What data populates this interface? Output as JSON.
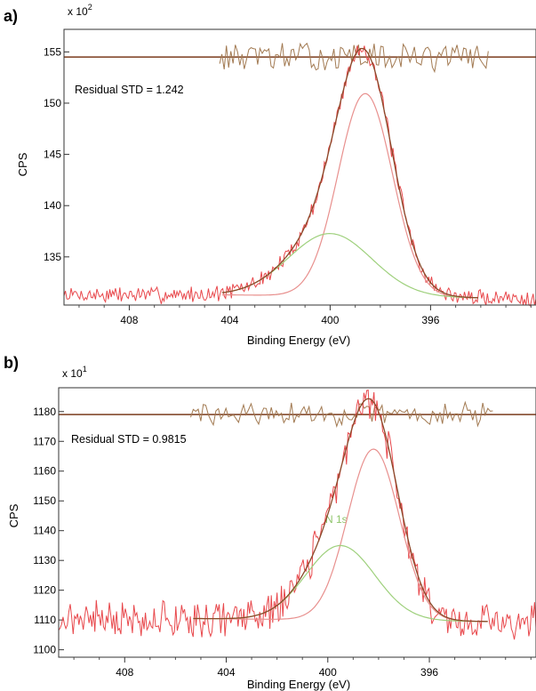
{
  "chart_data": [
    {
      "panel": "a)",
      "type": "line",
      "xlabel": "Binding Energy (eV)",
      "ylabel": "CPS",
      "multiplier": "x 10",
      "multiplier_exp": "2",
      "annotation": "Residual STD = 1.242",
      "peak_label": "",
      "x_reversed": true,
      "xlim": [
        410.6,
        391.8
      ],
      "ylim": [
        130.3,
        157.2
      ],
      "xticks": [
        408,
        404,
        400,
        396
      ],
      "yticks": [
        135,
        140,
        145,
        150,
        155
      ],
      "residual_baseline": 154.5,
      "residual_range": [
        404.4,
        393.7
      ],
      "residual_amp": 1.2,
      "background": {
        "left_x": 404.3,
        "left_y": 131.3,
        "right_x": 394.1,
        "right_y": 131.0
      },
      "components": [
        {
          "center": 398.6,
          "height": 19.8,
          "fwhm": 2.55,
          "color": "#e8908e"
        },
        {
          "center": 400.0,
          "height": 6.1,
          "fwhm": 3.9,
          "color": "#9ed07c"
        }
      ],
      "raw_noise": 0.55,
      "raw_seed": 7,
      "resid_seed": 13,
      "colors": {
        "raw": "#e8484c",
        "envelope": "#8a4a2a",
        "residual": "#a27a52",
        "baseline": "#7a3b1c"
      }
    },
    {
      "panel": "b)",
      "type": "line",
      "xlabel": "Binding Energy (eV)",
      "ylabel": "CPS",
      "multiplier": "x 10",
      "multiplier_exp": "1",
      "annotation": "Residual STD = 0.9815",
      "peak_label": "N 1s",
      "x_reversed": true,
      "xlim": [
        410.6,
        391.8
      ],
      "ylim": [
        1097.5,
        1188
      ],
      "xticks": [
        408,
        404,
        400,
        396
      ],
      "yticks": [
        1100,
        1110,
        1120,
        1130,
        1140,
        1150,
        1160,
        1170,
        1180
      ],
      "residual_baseline": 1179,
      "residual_range": [
        405.4,
        393.5
      ],
      "residual_amp": 3.5,
      "background": {
        "left_x": 405.3,
        "left_y": 1110.5,
        "right_x": 393.7,
        "right_y": 1109.5
      },
      "components": [
        {
          "center": 398.2,
          "height": 57.5,
          "fwhm": 2.4,
          "color": "#e8908e"
        },
        {
          "center": 399.5,
          "height": 25.0,
          "fwhm": 3.2,
          "color": "#9ed07c"
        }
      ],
      "raw_noise": 4.2,
      "raw_seed": 21,
      "resid_seed": 29,
      "colors": {
        "raw": "#e8484c",
        "envelope": "#8a4a2a",
        "residual": "#a27a52",
        "baseline": "#7a3b1c"
      }
    }
  ]
}
